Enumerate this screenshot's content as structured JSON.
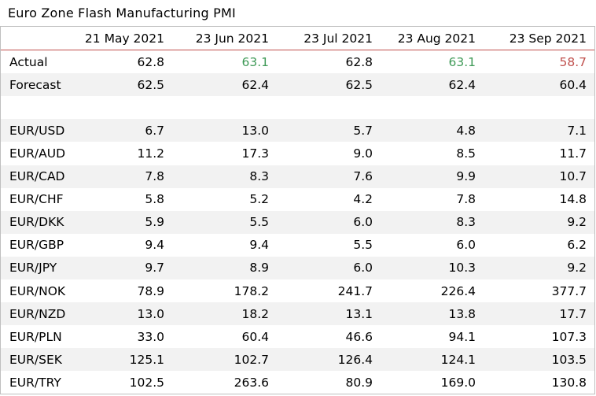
{
  "chart_data": {
    "type": "table",
    "title": "Euro Zone Flash Manufacturing PMI",
    "columns": [
      "21 May 2021",
      "23 Jun 2021",
      "23 Jul 2021",
      "23 Aug 2021",
      "23 Sep 2021"
    ],
    "rows": [
      {
        "label": "Actual",
        "values": [
          "62.8",
          "63.1",
          "62.8",
          "63.1",
          "58.7"
        ],
        "colors": [
          "",
          "green",
          "",
          "green",
          "red"
        ]
      },
      {
        "label": "Forecast",
        "values": [
          "62.5",
          "62.4",
          "62.5",
          "62.4",
          "60.4"
        ]
      },
      {
        "label": "",
        "values": [
          "",
          "",
          "",
          "",
          ""
        ]
      },
      {
        "label": "EUR/USD",
        "values": [
          "6.7",
          "13.0",
          "5.7",
          "4.8",
          "7.1"
        ]
      },
      {
        "label": "EUR/AUD",
        "values": [
          "11.2",
          "17.3",
          "9.0",
          "8.5",
          "11.7"
        ]
      },
      {
        "label": "EUR/CAD",
        "values": [
          "7.8",
          "8.3",
          "7.6",
          "9.9",
          "10.7"
        ]
      },
      {
        "label": "EUR/CHF",
        "values": [
          "5.8",
          "5.2",
          "4.2",
          "7.8",
          "14.8"
        ]
      },
      {
        "label": "EUR/DKK",
        "values": [
          "5.9",
          "5.5",
          "6.0",
          "8.3",
          "9.2"
        ]
      },
      {
        "label": "EUR/GBP",
        "values": [
          "9.4",
          "9.4",
          "5.5",
          "6.0",
          "6.2"
        ]
      },
      {
        "label": "EUR/JPY",
        "values": [
          "9.7",
          "8.9",
          "6.0",
          "10.3",
          "9.2"
        ]
      },
      {
        "label": "EUR/NOK",
        "values": [
          "78.9",
          "178.2",
          "241.7",
          "226.4",
          "377.7"
        ]
      },
      {
        "label": "EUR/NZD",
        "values": [
          "13.0",
          "18.2",
          "13.1",
          "13.8",
          "17.7"
        ]
      },
      {
        "label": "EUR/PLN",
        "values": [
          "33.0",
          "60.4",
          "46.6",
          "94.1",
          "107.3"
        ]
      },
      {
        "label": "EUR/SEK",
        "values": [
          "125.1",
          "102.7",
          "126.4",
          "124.1",
          "103.5"
        ]
      },
      {
        "label": "EUR/TRY",
        "values": [
          "102.5",
          "263.6",
          "80.9",
          "169.0",
          "130.8"
        ]
      }
    ]
  },
  "colors": {
    "beat": "#3f9a57",
    "miss": "#c0504d",
    "header_rule": "#c0504d",
    "stripe": "#f2f2f2"
  }
}
